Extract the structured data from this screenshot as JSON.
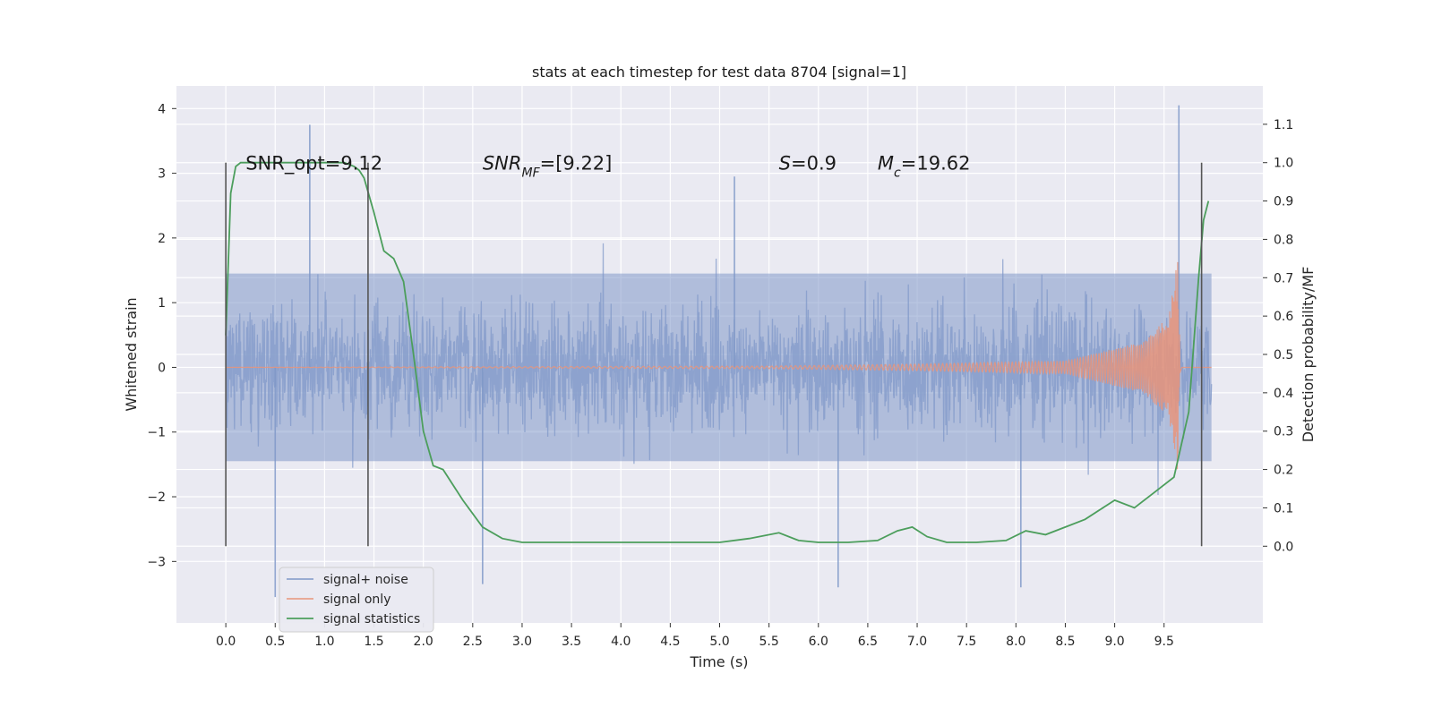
{
  "chart_data": {
    "type": "line",
    "title": "stats at each timestep for test data 8704 [signal=1]",
    "xlabel": "Time (s)",
    "ylabel_left": "Whitened strain",
    "ylabel_right": "Detection probability/MF",
    "xlim": [
      -0.5,
      10.5
    ],
    "xticks": [
      0.0,
      0.5,
      1.0,
      1.5,
      2.0,
      2.5,
      3.0,
      3.5,
      4.0,
      4.5,
      5.0,
      5.5,
      6.0,
      6.5,
      7.0,
      7.5,
      8.0,
      8.5,
      9.0,
      9.5
    ],
    "xtick_labels": [
      "0.0",
      "0.5",
      "1.0",
      "1.5",
      "2.0",
      "2.5",
      "3.0",
      "3.5",
      "4.0",
      "4.5",
      "5.0",
      "5.5",
      "6.0",
      "6.5",
      "7.0",
      "7.5",
      "8.0",
      "8.5",
      "9.0",
      "9.5"
    ],
    "ylim_left": [
      -3.95,
      4.35
    ],
    "yticks_left": [
      4,
      3,
      2,
      1,
      0,
      -1,
      -2,
      -3
    ],
    "ytick_labels_left": [
      "4",
      "3",
      "2",
      "1",
      "0",
      "−1",
      "−2",
      "−3"
    ],
    "ylim_right": [
      -0.2,
      1.2
    ],
    "yticks_right": [
      1.1,
      1.0,
      0.9,
      0.8,
      0.7,
      0.6,
      0.5,
      0.4,
      0.3,
      0.2,
      0.1,
      0.0
    ],
    "ytick_labels_right": [
      "1.1",
      "1.0",
      "0.9",
      "0.8",
      "0.7",
      "0.6",
      "0.5",
      "0.4",
      "0.3",
      "0.2",
      "0.1",
      "0.0"
    ],
    "grid": true,
    "legend_position": "lower-left",
    "annotations": [
      {
        "text": "SNR_opt=9.12",
        "x": 0.2,
        "y": 3.15
      },
      {
        "text": "SNR",
        "sub": "MF",
        "after": "=[9.22]",
        "x": 2.6,
        "y": 3.15
      },
      {
        "text": "S",
        "after": "=0.9",
        "x": 5.6,
        "y": 3.15
      },
      {
        "text": "M",
        "sub": "c",
        "after": "=19.62",
        "x": 6.6,
        "y": 3.15
      }
    ],
    "vlines": [
      {
        "x": 0.0,
        "y0": -0.0,
        "y1": 1.0
      },
      {
        "x": 1.44,
        "y0": -0.0,
        "y1": 1.0
      },
      {
        "x": 9.88,
        "y0": -0.0,
        "y1": 1.0
      }
    ],
    "series": [
      {
        "name": "signal+ noise",
        "color": "#7f98c8",
        "axis": "left",
        "x_range": [
          0.0,
          9.98
        ],
        "amplitude_typical": 1.4,
        "amplitude_peak": 4.0,
        "note_points_peaks": [
          [
            0.85,
            3.75
          ],
          [
            5.15,
            2.95
          ],
          [
            9.65,
            4.05
          ],
          [
            0.5,
            -3.55
          ],
          [
            2.6,
            -3.35
          ],
          [
            6.2,
            -3.4
          ],
          [
            8.05,
            -3.4
          ]
        ]
      },
      {
        "name": "signal only",
        "color": "#e8947a",
        "axis": "left",
        "x_range": [
          0.0,
          9.98
        ],
        "envelope": [
          [
            0.0,
            0.0
          ],
          [
            5.5,
            0.02
          ],
          [
            7.0,
            0.05
          ],
          [
            8.5,
            0.1
          ],
          [
            9.3,
            0.4
          ],
          [
            9.55,
            0.8
          ],
          [
            9.65,
            1.8
          ],
          [
            9.68,
            0.0
          ]
        ]
      },
      {
        "name": "signal statistics",
        "color": "#4c9e5c",
        "axis": "right",
        "x": [
          0.0,
          0.05,
          0.1,
          0.15,
          0.2,
          0.3,
          0.5,
          0.8,
          1.0,
          1.2,
          1.3,
          1.35,
          1.4,
          1.5,
          1.6,
          1.7,
          1.8,
          1.9,
          2.0,
          2.1,
          2.2,
          2.4,
          2.6,
          2.8,
          3.0,
          3.5,
          4.0,
          4.5,
          5.0,
          5.3,
          5.6,
          5.8,
          6.0,
          6.3,
          6.6,
          6.8,
          6.95,
          7.1,
          7.3,
          7.6,
          7.9,
          8.1,
          8.3,
          8.5,
          8.7,
          9.0,
          9.2,
          9.4,
          9.6,
          9.75,
          9.85,
          9.9,
          9.95
        ],
        "y": [
          0.55,
          0.92,
          0.99,
          1.0,
          1.0,
          1.0,
          1.0,
          1.0,
          1.0,
          1.0,
          0.99,
          0.98,
          0.96,
          0.87,
          0.77,
          0.75,
          0.69,
          0.5,
          0.3,
          0.21,
          0.2,
          0.12,
          0.05,
          0.02,
          0.01,
          0.01,
          0.01,
          0.01,
          0.01,
          0.02,
          0.035,
          0.015,
          0.01,
          0.01,
          0.015,
          0.04,
          0.05,
          0.025,
          0.01,
          0.01,
          0.015,
          0.04,
          0.03,
          0.05,
          0.07,
          0.12,
          0.1,
          0.14,
          0.18,
          0.35,
          0.7,
          0.85,
          0.9
        ]
      }
    ]
  }
}
